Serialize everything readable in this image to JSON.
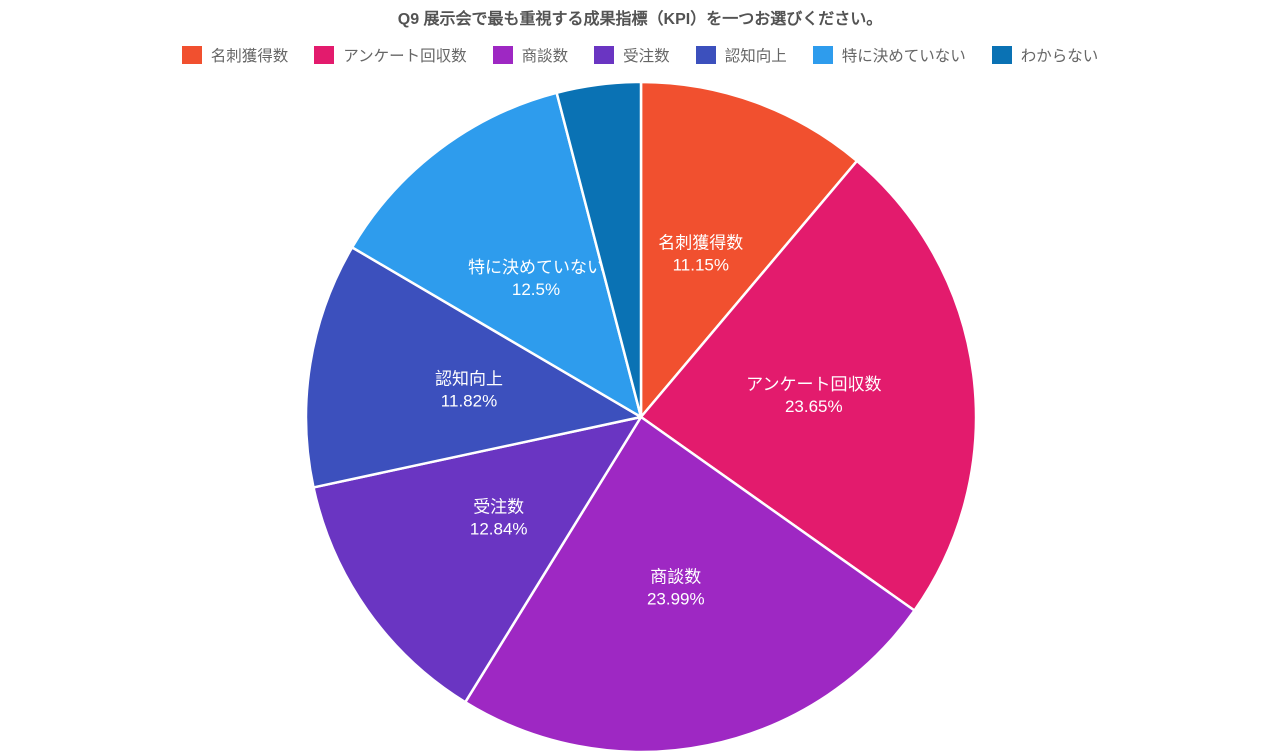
{
  "title": "Q9 展示会で最も重視する成果指標（KPI）を一つお選びください。",
  "chart_data": {
    "type": "pie",
    "title": "Q9 展示会で最も重視する成果指標（KPI）を一つお選びください。",
    "legend_position": "top",
    "start_angle_deg": 0,
    "direction": "clockwise",
    "stroke_color": "#ffffff",
    "label_color": "#ffffff",
    "percent_suffix": "%",
    "series": [
      {
        "label": "名刺獲得数",
        "value": 11.15,
        "color": "#f1502f",
        "show_label": true
      },
      {
        "label": "アンケート回収数",
        "value": 23.65,
        "color": "#e31b6d",
        "show_label": true
      },
      {
        "label": "商談数",
        "value": 23.99,
        "color": "#9e28c3",
        "show_label": true
      },
      {
        "label": "受注数",
        "value": 12.84,
        "color": "#6a35c2",
        "show_label": true
      },
      {
        "label": "認知向上",
        "value": 11.82,
        "color": "#3c50bd",
        "show_label": true
      },
      {
        "label": "特に決めていない",
        "value": 12.5,
        "color": "#2e9ced",
        "show_label": true
      },
      {
        "label": "わからない",
        "value": 4.05,
        "color": "#0a72b4",
        "show_label": false
      }
    ],
    "layout": {
      "center_x": 641,
      "center_y": 417,
      "radius": 335,
      "label_radius_ratio": 0.52
    }
  }
}
